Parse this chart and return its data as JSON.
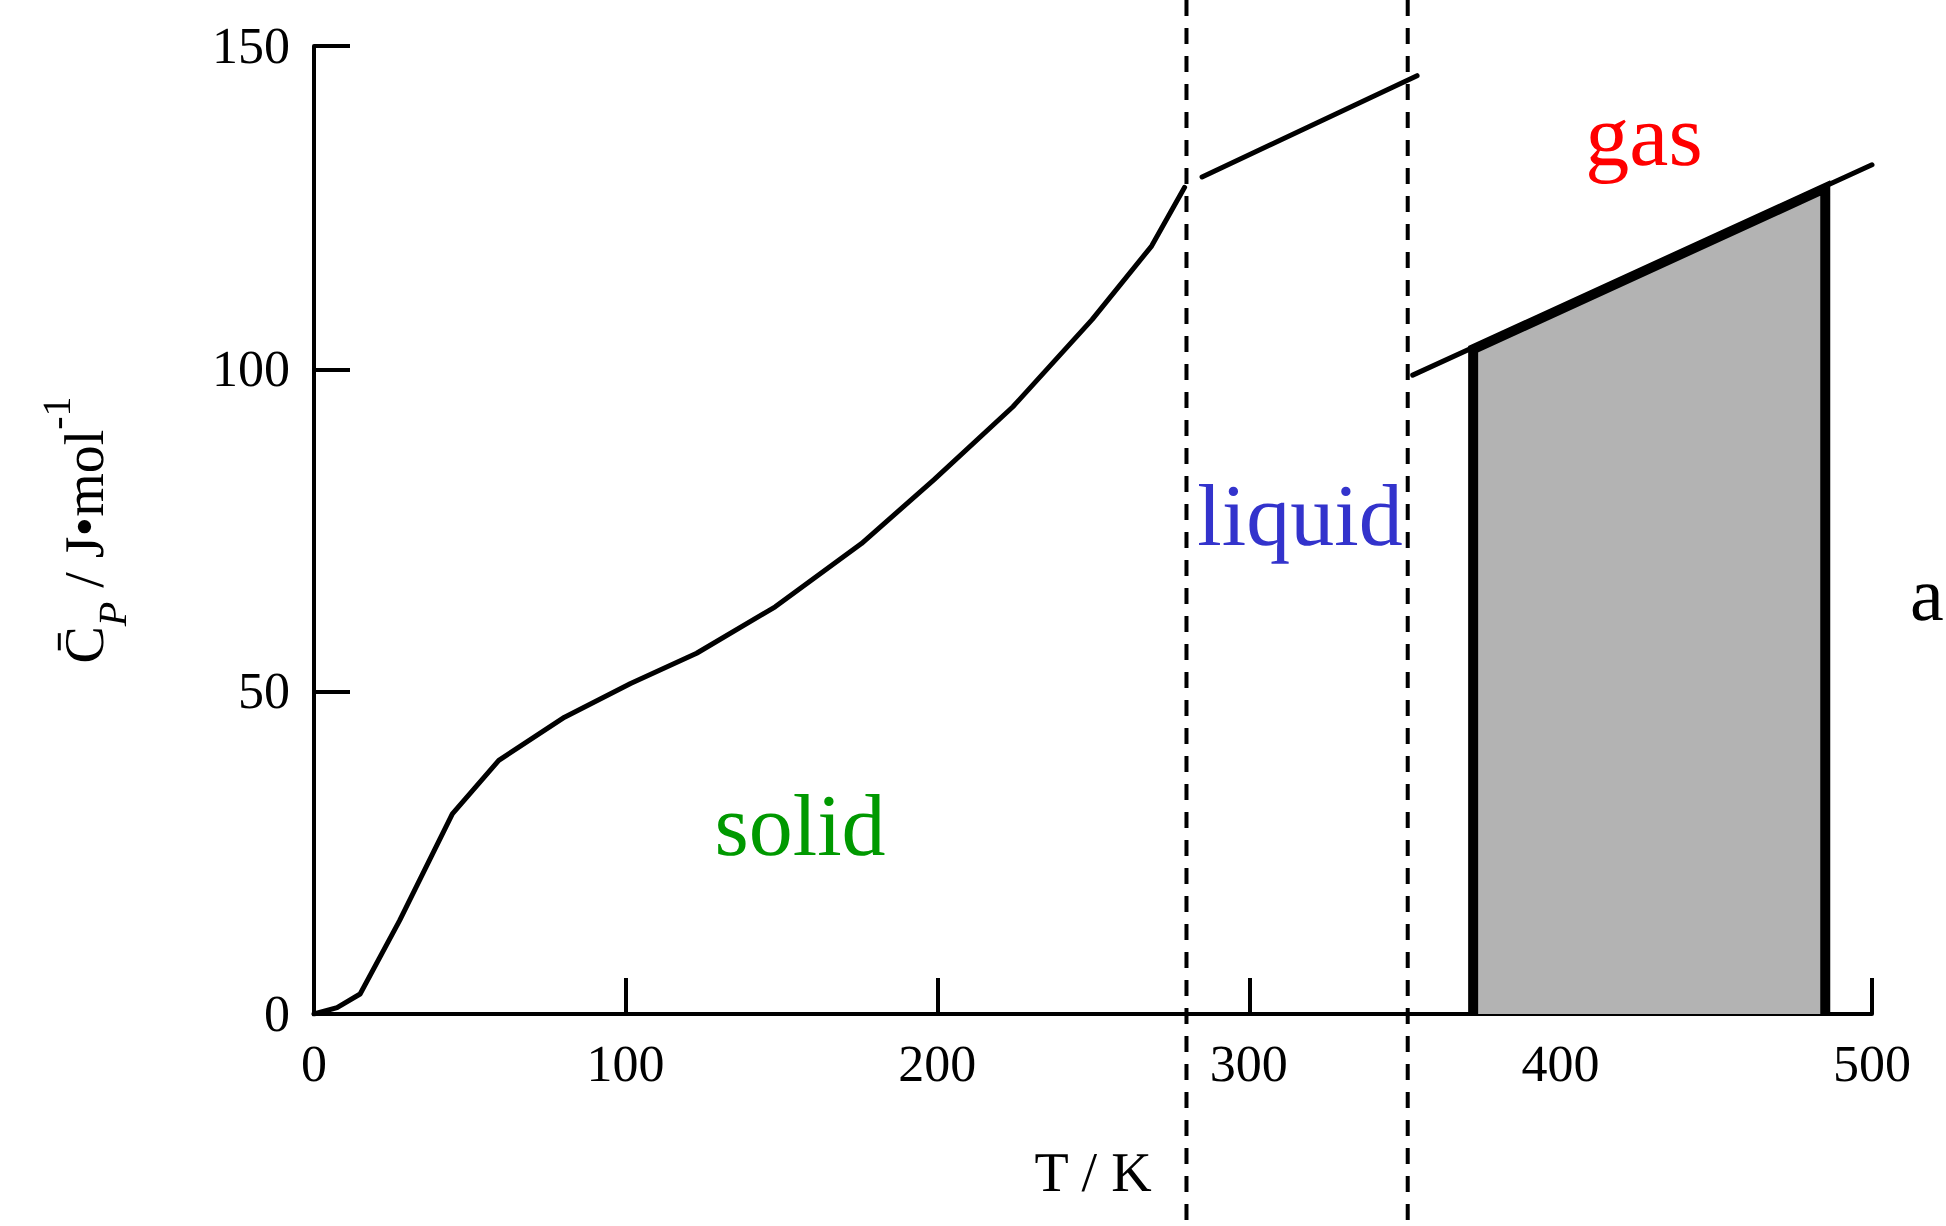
{
  "chart_data": {
    "type": "line",
    "xlabel": "T / K",
    "ylabel": "C̄$_{P}$ / J•mol$^{-1}$",
    "xlim": [
      0,
      500
    ],
    "xticks": [
      0,
      100,
      200,
      300,
      400,
      500
    ],
    "ylim": [
      0,
      150
    ],
    "yticks": [
      0,
      50,
      100,
      150
    ],
    "marker": "none",
    "series": [
      {
        "color": "#000000",
        "x": [
          0,
          7.4,
          14.8,
          27.5,
          44.4,
          59.3,
          80.4,
          101.6,
          122.8,
          148,
          175.7,
          199,
          224.3,
          249.7,
          268.8,
          279.4
        ],
        "values": [
          0,
          1,
          3.1,
          14.5,
          31,
          39.3,
          46,
          51.2,
          55.9,
          63.1,
          72.9,
          82.8,
          94.1,
          107.6,
          119,
          128.1
        ]
      },
      {
        "color": "#000000",
        "x": [
          285,
          354
        ],
        "values": [
          129.7,
          145.4
        ]
      },
      {
        "color": "#000000",
        "x": [
          352.6,
          500
        ],
        "values": [
          99,
          131.6
        ]
      },
      {
        "type": "area",
        "color": "#b3b3b3",
        "x": [
          372,
          372,
          485,
          485
        ],
        "values": [
          0,
          103,
          128,
          0
        ]
      }
    ],
    "ref_lines": [
      {
        "axis": "x",
        "value": 280,
        "color": "#000000",
        "line_style": "dashed"
      },
      {
        "axis": "x",
        "value": 351,
        "color": "#000000",
        "line_style": "dashed"
      }
    ],
    "annotations": [
      "solid",
      "liquid",
      "gas",
      "a"
    ]
  }
}
